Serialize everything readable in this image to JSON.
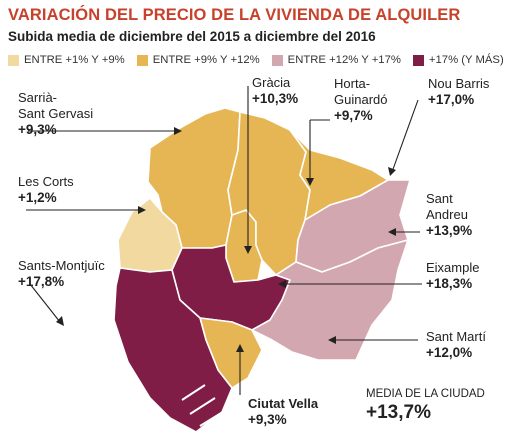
{
  "title": "VARIACIÓN DEL PRECIO DE LA VIVIENDA DE ALQUILER",
  "subtitle": "Subida media de diciembre del 2015 a diciembre del 2016",
  "legend": [
    {
      "label": "ENTRE +1% Y +9%",
      "color": "#f1d9a0"
    },
    {
      "label": "ENTRE +9% Y +12%",
      "color": "#e6b654"
    },
    {
      "label": "ENTRE +12% Y +17%",
      "color": "#d3a7b0"
    },
    {
      "label": "+17% (Y MÁS)",
      "color": "#801d46"
    }
  ],
  "districts": {
    "sarria": {
      "name": "Sarrià-\nSant Gervasi",
      "value": "+9,3%"
    },
    "gracia": {
      "name": "Gràcia",
      "value": "+10,3%"
    },
    "horta": {
      "name": "Horta-\nGuinardó",
      "value": "+9,7%"
    },
    "noubarris": {
      "name": "Nou Barris",
      "value": "+17,0%"
    },
    "lescorts": {
      "name": "Les Corts",
      "value": "+1,2%"
    },
    "santandreu": {
      "name": "Sant\nAndreu",
      "value": "+13,9%"
    },
    "sants": {
      "name": "Sants-Montjuïc",
      "value": "+17,8%"
    },
    "eixample": {
      "name": "Eixample",
      "value": "+18,3%"
    },
    "santmarti": {
      "name": "Sant Martí",
      "value": "+12,0%"
    },
    "ciutatvella": {
      "name": "Ciutat Vella",
      "value": "+9,3%"
    }
  },
  "city_average": {
    "caption": "MEDIA DE LA CIUDAD",
    "value": "+13,7%"
  }
}
